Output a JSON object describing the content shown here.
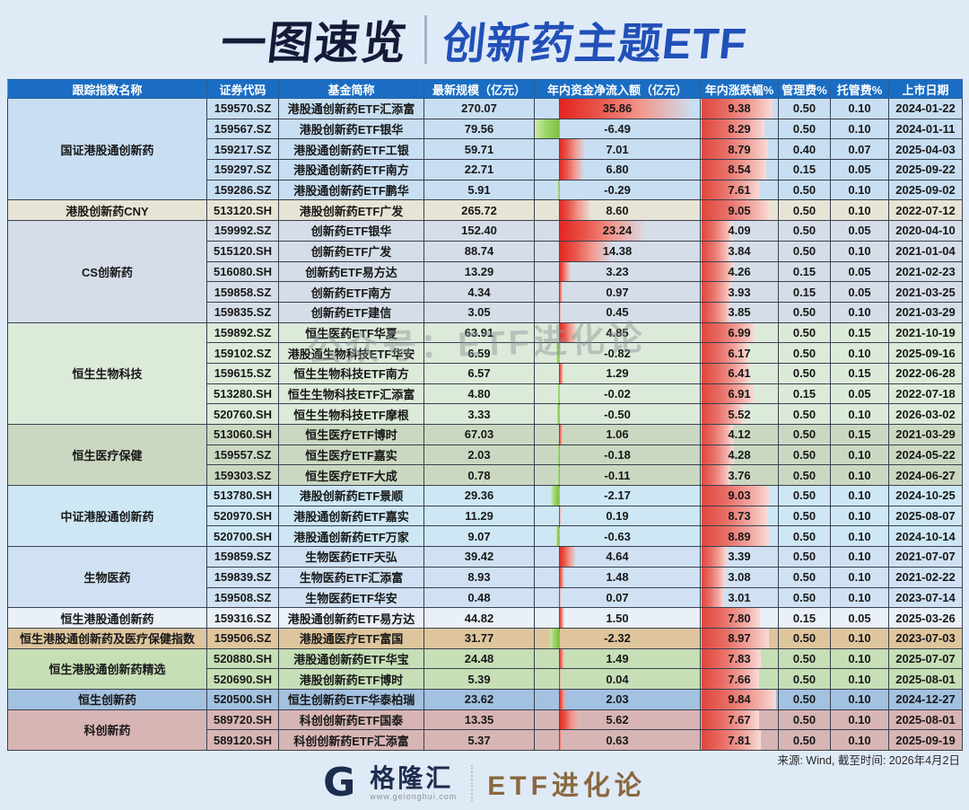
{
  "title": {
    "left": "一图速览",
    "right": "创新药主题ETF"
  },
  "watermark": "公众号：ETF进化论",
  "footer": {
    "source": "来源: Wind, 截至时间: 2026年4月2日",
    "logo_mark": "G",
    "logo_name": "格隆汇",
    "logo_url": "www.gelonghui.com",
    "brand": "ETF进化论"
  },
  "colors": {
    "header_bg": "#1a6dc3",
    "title_dark": "#141a38",
    "title_blue": "#2150b8",
    "positive_bar": "#e3251f",
    "negative_bar": "#7fbf41",
    "change_bar": "#e0463c",
    "brand_gold": "#8a683f"
  },
  "chart_data": {
    "type": "table",
    "title": "一图速览 | 创新药主题ETF",
    "columns": [
      "跟踪指数名称",
      "证券代码",
      "基金简称",
      "最新规模（亿元）",
      "年内资金净流入额（亿元）",
      "年内涨跌幅%",
      "管理费%",
      "托管费%",
      "上市日期"
    ],
    "bar_scales": {
      "inflow_max_abs": 35.86,
      "change_max": 9.84
    },
    "groups": [
      {
        "index": "国证港股通创新药",
        "color": "#c8def2",
        "rows": [
          {
            "code": "159570.SZ",
            "name": "港股通创新药ETF汇添富",
            "scale": "270.07",
            "inflow": "35.86",
            "change": "9.38",
            "mgmt": "0.50",
            "cust": "0.10",
            "date": "2024-01-22"
          },
          {
            "code": "159567.SZ",
            "name": "港股创新药ETF银华",
            "scale": "79.56",
            "inflow": "-6.49",
            "change": "8.29",
            "mgmt": "0.50",
            "cust": "0.10",
            "date": "2024-01-11"
          },
          {
            "code": "159217.SZ",
            "name": "港股通创新药ETF工银",
            "scale": "59.71",
            "inflow": "7.01",
            "change": "8.79",
            "mgmt": "0.40",
            "cust": "0.07",
            "date": "2025-04-03"
          },
          {
            "code": "159297.SZ",
            "name": "港股通创新药ETF南方",
            "scale": "22.71",
            "inflow": "6.80",
            "change": "8.54",
            "mgmt": "0.15",
            "cust": "0.05",
            "date": "2025-09-22"
          },
          {
            "code": "159286.SZ",
            "name": "港股通创新药ETF鹏华",
            "scale": "5.91",
            "inflow": "-0.29",
            "change": "7.61",
            "mgmt": "0.50",
            "cust": "0.10",
            "date": "2025-09-02"
          }
        ]
      },
      {
        "index": "港股创新药CNY",
        "color": "#e8e4d5",
        "rows": [
          {
            "code": "513120.SH",
            "name": "港股创新药ETF广发",
            "scale": "265.72",
            "inflow": "8.60",
            "change": "9.05",
            "mgmt": "0.50",
            "cust": "0.10",
            "date": "2022-07-12"
          }
        ]
      },
      {
        "index": "CS创新药",
        "color": "#d5dde8",
        "rows": [
          {
            "code": "159992.SZ",
            "name": "创新药ETF银华",
            "scale": "152.40",
            "inflow": "23.24",
            "change": "4.09",
            "mgmt": "0.50",
            "cust": "0.05",
            "date": "2020-04-10"
          },
          {
            "code": "515120.SH",
            "name": "创新药ETF广发",
            "scale": "88.74",
            "inflow": "14.38",
            "change": "3.84",
            "mgmt": "0.50",
            "cust": "0.10",
            "date": "2021-01-04"
          },
          {
            "code": "516080.SH",
            "name": "创新药ETF易方达",
            "scale": "13.29",
            "inflow": "3.23",
            "change": "4.26",
            "mgmt": "0.15",
            "cust": "0.05",
            "date": "2021-02-23"
          },
          {
            "code": "159858.SZ",
            "name": "创新药ETF南方",
            "scale": "4.34",
            "inflow": "0.97",
            "change": "3.93",
            "mgmt": "0.15",
            "cust": "0.05",
            "date": "2021-03-25"
          },
          {
            "code": "159835.SZ",
            "name": "创新药ETF建信",
            "scale": "3.05",
            "inflow": "0.45",
            "change": "3.85",
            "mgmt": "0.50",
            "cust": "0.10",
            "date": "2021-03-29"
          }
        ]
      },
      {
        "index": "恒生生物科技",
        "color": "#dcead9",
        "rows": [
          {
            "code": "159892.SZ",
            "name": "恒生医药ETF华夏",
            "scale": "63.91",
            "inflow": "4.85",
            "change": "6.99",
            "mgmt": "0.50",
            "cust": "0.15",
            "date": "2021-10-19"
          },
          {
            "code": "159102.SZ",
            "name": "港股通生物科技ETF华安",
            "scale": "6.59",
            "inflow": "-0.82",
            "change": "6.17",
            "mgmt": "0.50",
            "cust": "0.10",
            "date": "2025-09-16"
          },
          {
            "code": "159615.SZ",
            "name": "恒生生物科技ETF南方",
            "scale": "6.57",
            "inflow": "1.29",
            "change": "6.41",
            "mgmt": "0.50",
            "cust": "0.15",
            "date": "2022-06-28"
          },
          {
            "code": "513280.SH",
            "name": "恒生生物科技ETF汇添富",
            "scale": "4.80",
            "inflow": "-0.02",
            "change": "6.91",
            "mgmt": "0.15",
            "cust": "0.05",
            "date": "2022-07-18"
          },
          {
            "code": "520760.SH",
            "name": "恒生生物科技ETF摩根",
            "scale": "3.33",
            "inflow": "-0.50",
            "change": "5.52",
            "mgmt": "0.50",
            "cust": "0.10",
            "date": "2026-03-02"
          }
        ]
      },
      {
        "index": "恒生医疗保健",
        "color": "#cbd8c1",
        "rows": [
          {
            "code": "513060.SH",
            "name": "恒生医疗ETF博时",
            "scale": "67.03",
            "inflow": "1.06",
            "change": "4.12",
            "mgmt": "0.50",
            "cust": "0.15",
            "date": "2021-03-29"
          },
          {
            "code": "159557.SZ",
            "name": "恒生医疗ETF嘉实",
            "scale": "2.03",
            "inflow": "-0.18",
            "change": "4.28",
            "mgmt": "0.50",
            "cust": "0.10",
            "date": "2024-05-22"
          },
          {
            "code": "159303.SZ",
            "name": "恒生医疗ETF大成",
            "scale": "0.78",
            "inflow": "-0.11",
            "change": "3.76",
            "mgmt": "0.50",
            "cust": "0.10",
            "date": "2024-06-27"
          }
        ]
      },
      {
        "index": "中证港股通创新药",
        "color": "#cde7f4",
        "rows": [
          {
            "code": "513780.SH",
            "name": "港股创新药ETF景顺",
            "scale": "29.36",
            "inflow": "-2.17",
            "change": "9.03",
            "mgmt": "0.50",
            "cust": "0.10",
            "date": "2024-10-25"
          },
          {
            "code": "520970.SH",
            "name": "港股通创新药ETF嘉实",
            "scale": "11.29",
            "inflow": "0.19",
            "change": "8.73",
            "mgmt": "0.50",
            "cust": "0.10",
            "date": "2025-08-07"
          },
          {
            "code": "520700.SH",
            "name": "港股通创新药ETF万家",
            "scale": "9.07",
            "inflow": "-0.63",
            "change": "8.89",
            "mgmt": "0.50",
            "cust": "0.10",
            "date": "2024-10-14"
          }
        ]
      },
      {
        "index": "生物医药",
        "color": "#cfe1f2",
        "rows": [
          {
            "code": "159859.SZ",
            "name": "生物医药ETF天弘",
            "scale": "39.42",
            "inflow": "4.64",
            "change": "3.39",
            "mgmt": "0.50",
            "cust": "0.10",
            "date": "2021-07-07"
          },
          {
            "code": "159839.SZ",
            "name": "生物医药ETF汇添富",
            "scale": "8.93",
            "inflow": "1.48",
            "change": "3.08",
            "mgmt": "0.50",
            "cust": "0.10",
            "date": "2021-02-22"
          },
          {
            "code": "159508.SZ",
            "name": "生物医药ETF华安",
            "scale": "0.48",
            "inflow": "0.07",
            "change": "3.01",
            "mgmt": "0.50",
            "cust": "0.10",
            "date": "2023-07-14"
          }
        ]
      },
      {
        "index": "恒生港股通创新药",
        "color": "#e9f0f8",
        "rows": [
          {
            "code": "159316.SZ",
            "name": "港股通创新药ETF易方达",
            "scale": "44.82",
            "inflow": "1.50",
            "change": "7.80",
            "mgmt": "0.15",
            "cust": "0.05",
            "date": "2025-03-26"
          }
        ]
      },
      {
        "index": "恒生港股通创新药及医疗保健指数",
        "color": "#dec59d",
        "rows": [
          {
            "code": "159506.SZ",
            "name": "港股通医疗ETF富国",
            "scale": "31.77",
            "inflow": "-2.32",
            "change": "8.97",
            "mgmt": "0.50",
            "cust": "0.10",
            "date": "2023-07-03"
          }
        ]
      },
      {
        "index": "恒生港股通创新药精选",
        "color": "#c6dfb6",
        "rows": [
          {
            "code": "520880.SH",
            "name": "港股通创新药ETF华宝",
            "scale": "24.48",
            "inflow": "1.49",
            "change": "7.83",
            "mgmt": "0.50",
            "cust": "0.10",
            "date": "2025-07-07"
          },
          {
            "code": "520690.SH",
            "name": "港股创新药ETF博时",
            "scale": "5.39",
            "inflow": "0.04",
            "change": "7.66",
            "mgmt": "0.50",
            "cust": "0.10",
            "date": "2025-08-01"
          }
        ]
      },
      {
        "index": "恒生创新药",
        "color": "#a3c1e0",
        "rows": [
          {
            "code": "520500.SH",
            "name": "恒生创新药ETF华泰柏瑞",
            "scale": "23.62",
            "inflow": "2.03",
            "change": "9.84",
            "mgmt": "0.50",
            "cust": "0.10",
            "date": "2024-12-27"
          }
        ]
      },
      {
        "index": "科创新药",
        "color": "#d8b5b5",
        "rows": [
          {
            "code": "589720.SH",
            "name": "科创创新药ETF国泰",
            "scale": "13.35",
            "inflow": "5.62",
            "change": "7.67",
            "mgmt": "0.50",
            "cust": "0.10",
            "date": "2025-08-01"
          },
          {
            "code": "589120.SH",
            "name": "科创创新药ETF汇添富",
            "scale": "5.37",
            "inflow": "0.63",
            "change": "7.81",
            "mgmt": "0.50",
            "cust": "0.10",
            "date": "2025-09-19"
          }
        ]
      }
    ]
  }
}
